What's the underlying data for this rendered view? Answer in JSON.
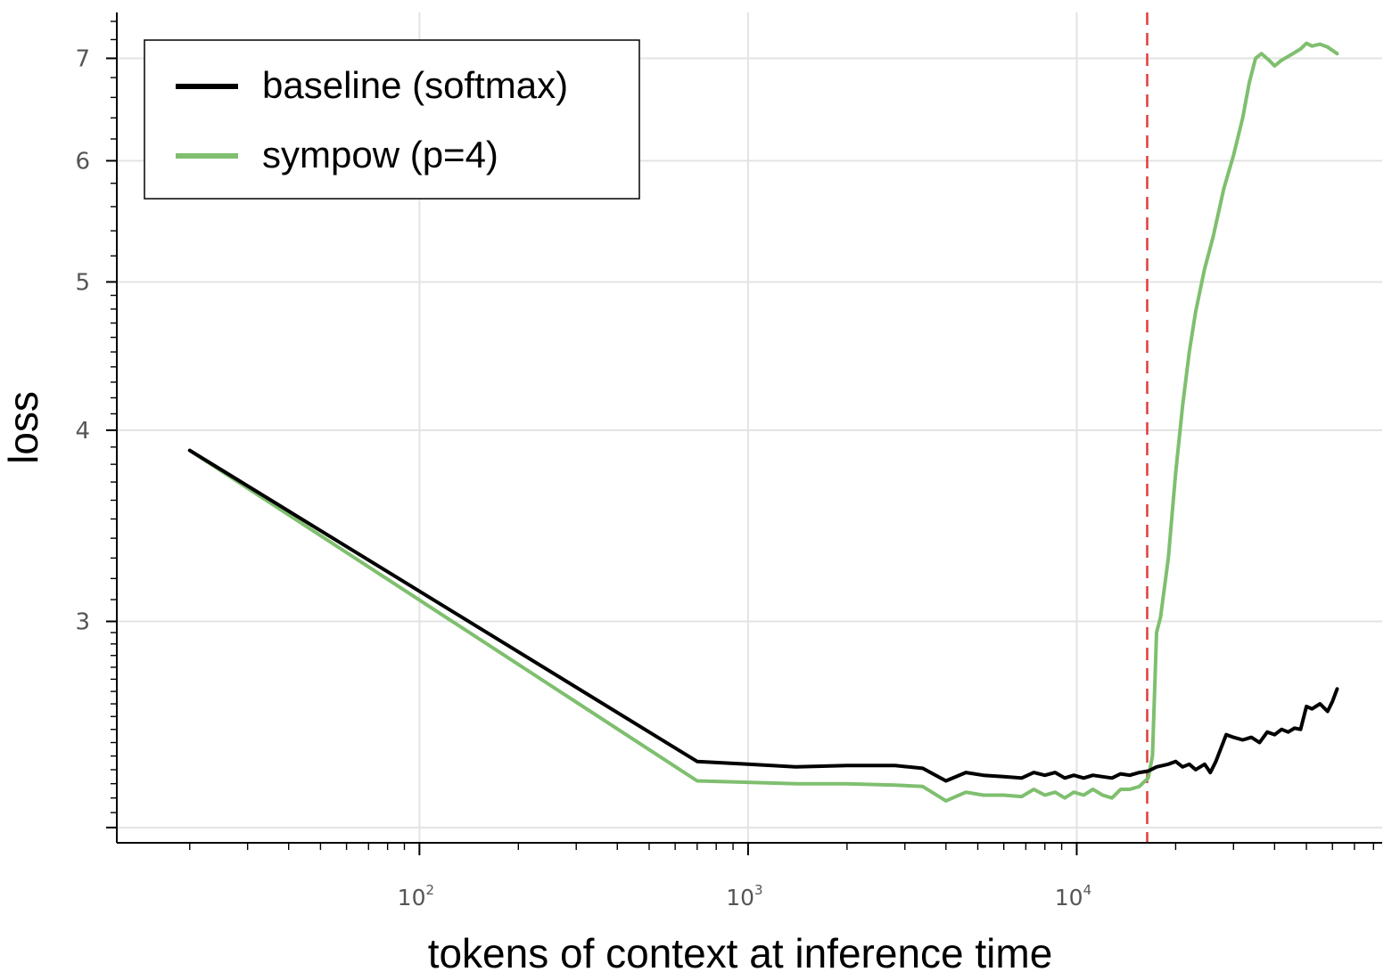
{
  "chart_data": {
    "type": "line",
    "xlabel": "tokens of context at inference time",
    "ylabel": "loss",
    "x_scale": "log",
    "y_scale": "log",
    "xlim": [
      12,
      85000
    ],
    "ylim": [
      2.15,
      7.5
    ],
    "x_ticks": [
      {
        "value": 100,
        "base": "10",
        "exp": "2"
      },
      {
        "value": 1000,
        "base": "10",
        "exp": "3"
      },
      {
        "value": 10000,
        "base": "10",
        "exp": "4"
      }
    ],
    "y_ticks": [
      3,
      4,
      5,
      6,
      7
    ],
    "grid": true,
    "legend_position": "top-left",
    "vertical_reference_line": {
      "x": 16384,
      "style": "dashed",
      "color": "#e03c3c"
    },
    "series": [
      {
        "name": "baseline (softmax)",
        "color": "#000000",
        "points": [
          [
            20,
            3.88
          ],
          [
            700,
            2.43
          ],
          [
            1000,
            2.42
          ],
          [
            1400,
            2.41
          ],
          [
            2000,
            2.415
          ],
          [
            2800,
            2.415
          ],
          [
            3400,
            2.405
          ],
          [
            4000,
            2.36
          ],
          [
            4600,
            2.39
          ],
          [
            5200,
            2.38
          ],
          [
            6000,
            2.375
          ],
          [
            6800,
            2.37
          ],
          [
            7400,
            2.39
          ],
          [
            8000,
            2.38
          ],
          [
            8600,
            2.39
          ],
          [
            9200,
            2.37
          ],
          [
            9800,
            2.38
          ],
          [
            10500,
            2.37
          ],
          [
            11200,
            2.38
          ],
          [
            12000,
            2.375
          ],
          [
            12800,
            2.37
          ],
          [
            13600,
            2.385
          ],
          [
            14500,
            2.38
          ],
          [
            15500,
            2.39
          ],
          [
            16500,
            2.395
          ],
          [
            17500,
            2.41
          ],
          [
            19000,
            2.42
          ],
          [
            20000,
            2.43
          ],
          [
            21000,
            2.41
          ],
          [
            22000,
            2.42
          ],
          [
            23000,
            2.4
          ],
          [
            24500,
            2.42
          ],
          [
            25500,
            2.39
          ],
          [
            26500,
            2.43
          ],
          [
            28500,
            2.53
          ],
          [
            30000,
            2.52
          ],
          [
            32000,
            2.51
          ],
          [
            34000,
            2.52
          ],
          [
            36000,
            2.5
          ],
          [
            38000,
            2.54
          ],
          [
            40000,
            2.53
          ],
          [
            42000,
            2.55
          ],
          [
            44000,
            2.54
          ],
          [
            46000,
            2.555
          ],
          [
            48000,
            2.55
          ],
          [
            50000,
            2.64
          ],
          [
            52000,
            2.63
          ],
          [
            55000,
            2.65
          ],
          [
            58000,
            2.62
          ],
          [
            60000,
            2.66
          ],
          [
            62000,
            2.71
          ]
        ]
      },
      {
        "name": "sympow (p=4)",
        "color": "#7fbf6f",
        "points": [
          [
            20,
            3.88
          ],
          [
            700,
            2.36
          ],
          [
            1000,
            2.355
          ],
          [
            1400,
            2.35
          ],
          [
            2000,
            2.35
          ],
          [
            2800,
            2.345
          ],
          [
            3400,
            2.34
          ],
          [
            4000,
            2.29
          ],
          [
            4600,
            2.32
          ],
          [
            5200,
            2.31
          ],
          [
            6000,
            2.31
          ],
          [
            6800,
            2.305
          ],
          [
            7400,
            2.33
          ],
          [
            8000,
            2.31
          ],
          [
            8600,
            2.32
          ],
          [
            9200,
            2.3
          ],
          [
            9800,
            2.32
          ],
          [
            10500,
            2.31
          ],
          [
            11200,
            2.33
          ],
          [
            12000,
            2.31
          ],
          [
            12800,
            2.3
          ],
          [
            13600,
            2.33
          ],
          [
            14500,
            2.33
          ],
          [
            15500,
            2.34
          ],
          [
            16500,
            2.37
          ],
          [
            17000,
            2.45
          ],
          [
            17500,
            2.95
          ],
          [
            18000,
            3.02
          ],
          [
            19000,
            3.3
          ],
          [
            20000,
            3.75
          ],
          [
            21000,
            4.15
          ],
          [
            22000,
            4.5
          ],
          [
            23000,
            4.78
          ],
          [
            24500,
            5.1
          ],
          [
            26000,
            5.35
          ],
          [
            28000,
            5.75
          ],
          [
            30000,
            6.05
          ],
          [
            32000,
            6.4
          ],
          [
            33500,
            6.75
          ],
          [
            35000,
            7.0
          ],
          [
            36500,
            7.05
          ],
          [
            38500,
            6.98
          ],
          [
            40000,
            6.92
          ],
          [
            42000,
            6.98
          ],
          [
            44000,
            7.02
          ],
          [
            46000,
            7.06
          ],
          [
            48000,
            7.1
          ],
          [
            50000,
            7.16
          ],
          [
            52000,
            7.13
          ],
          [
            55000,
            7.15
          ],
          [
            58000,
            7.12
          ],
          [
            62000,
            7.05
          ]
        ]
      }
    ]
  }
}
